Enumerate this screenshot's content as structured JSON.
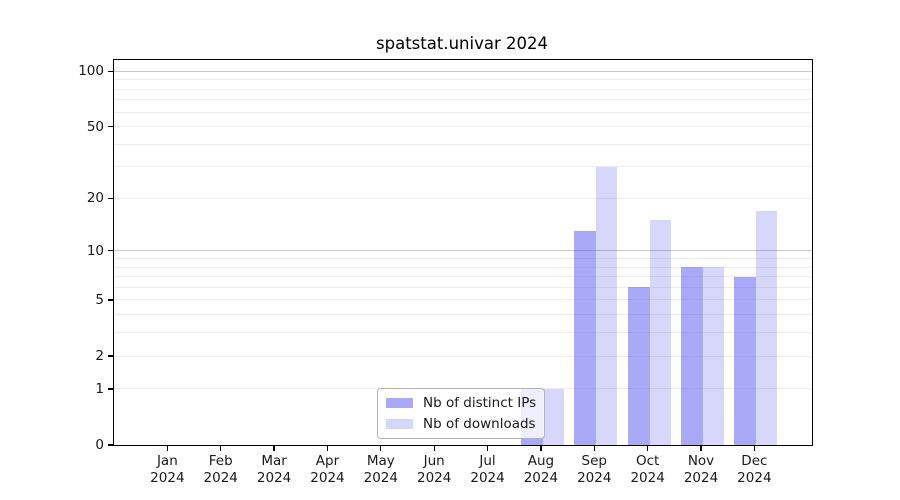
{
  "title": "spatstat.univar 2024",
  "legend": {
    "items": [
      {
        "label": "Nb of distinct IPs",
        "key": "ips"
      },
      {
        "label": "Nb of downloads",
        "key": "downloads"
      }
    ]
  },
  "colors": {
    "ips": "rgba(64,64,239,0.45)",
    "downloads": "rgba(64,64,239,0.21)",
    "grid_minor": "#ededed",
    "grid_major": "#c8c8c8",
    "axis": "#000000",
    "text": "#1a1a1a",
    "legend_border": "#b3b3b3"
  },
  "chart_data": {
    "type": "bar",
    "title": "spatstat.univar 2024",
    "categories": [
      "Jan 2024",
      "Feb 2024",
      "Mar 2024",
      "Apr 2024",
      "May 2024",
      "Jun 2024",
      "Jul 2024",
      "Aug 2024",
      "Sep 2024",
      "Oct 2024",
      "Nov 2024",
      "Dec 2024"
    ],
    "series": [
      {
        "name": "Nb of distinct IPs",
        "key": "ips",
        "values": [
          0,
          0,
          0,
          0,
          0,
          0,
          0,
          1,
          13,
          6,
          8,
          7
        ]
      },
      {
        "name": "Nb of downloads",
        "key": "downloads",
        "values": [
          0,
          0,
          0,
          0,
          0,
          0,
          0,
          1,
          30,
          15,
          8,
          17
        ]
      }
    ],
    "yscale": "log1p",
    "y_tick_values": [
      0,
      1,
      2,
      5,
      10,
      20,
      50,
      100
    ],
    "grid_minor_values": [
      1,
      2,
      3,
      4,
      5,
      6,
      7,
      8,
      9,
      20,
      30,
      40,
      50,
      60,
      70,
      80,
      90
    ],
    "grid_major_values": [
      10,
      100
    ],
    "ylim": [
      0,
      115
    ],
    "grid": true,
    "legend_position": "lower center"
  }
}
